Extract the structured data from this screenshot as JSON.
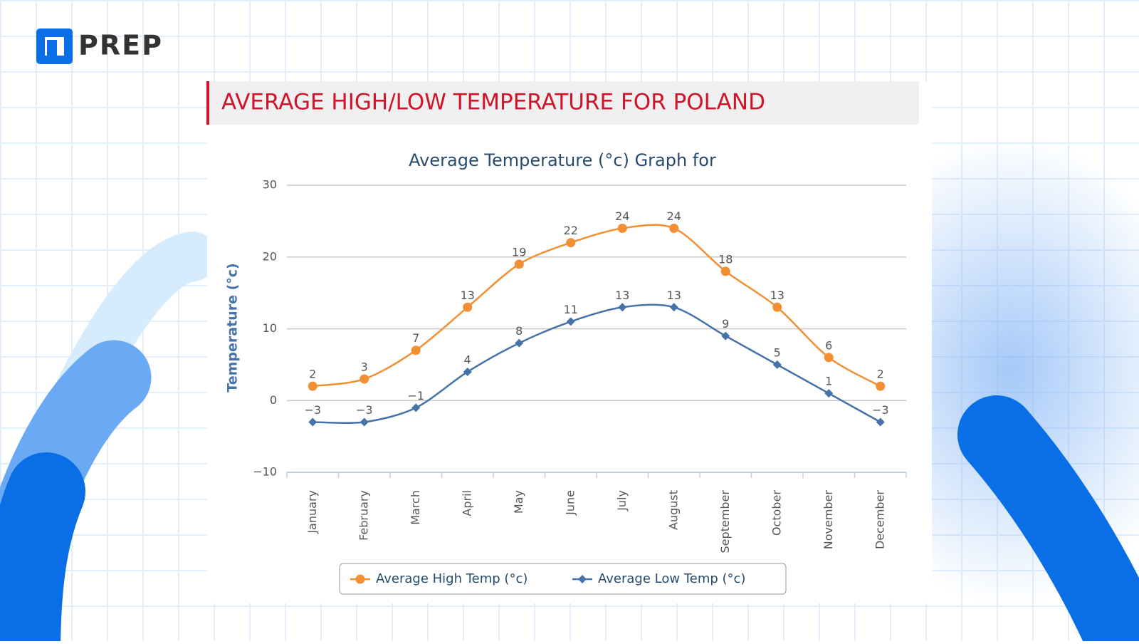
{
  "logo": "PREP",
  "header": "AVERAGE HIGH/LOW TEMPERATURE FOR POLAND",
  "chart_data": {
    "type": "line",
    "title": "Average Temperature (°c) Graph for",
    "y_label": "Temperature (°c)",
    "categories": [
      "January",
      "February",
      "March",
      "April",
      "May",
      "June",
      "July",
      "August",
      "September",
      "October",
      "November",
      "December"
    ],
    "series": [
      {
        "name": "Average High Temp (°c)",
        "color": "#f28f33",
        "marker": "circle",
        "values": [
          2,
          3,
          7,
          13,
          19,
          22,
          24,
          24,
          18,
          13,
          6,
          2
        ]
      },
      {
        "name": "Average Low Temp (°c)",
        "color": "#4572a7",
        "marker": "diamond",
        "values": [
          -3,
          -3,
          -1,
          4,
          8,
          11,
          13,
          13,
          9,
          5,
          1,
          -3
        ],
        "value_labels": [
          "−3",
          "−3",
          "−1",
          "4",
          "8",
          "11",
          "13",
          "13",
          "9",
          "5",
          "1",
          "−3"
        ]
      }
    ],
    "ylim": [
      -10,
      30
    ],
    "yticks": [
      {
        "value": -10,
        "label": "−10"
      },
      0,
      10,
      20,
      30
    ],
    "grid": true,
    "legend": "bottom"
  }
}
